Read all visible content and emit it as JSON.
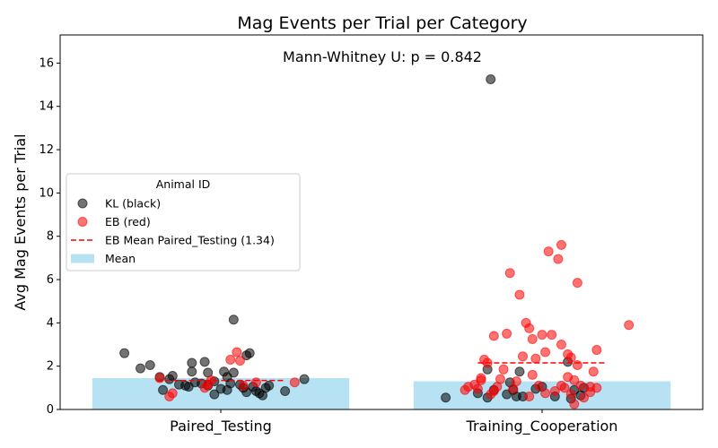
{
  "chart_data": {
    "type": "scatter",
    "title": "Mag Events per Trial per Category",
    "ylabel": "Avg Mag Events per Trial",
    "xlabel": "",
    "categories": [
      "Paired_Testing",
      "Training_Cooperation"
    ],
    "ylim": [
      0,
      17.3
    ],
    "yticks": [
      0,
      2,
      4,
      6,
      8,
      10,
      12,
      14,
      16
    ],
    "grid": false,
    "annotation": "Mann-Whitney U: p = 0.842",
    "means": [
      1.45,
      1.3
    ],
    "eb_mean_line": [
      {
        "category": "Paired_Testing",
        "value": 1.34
      },
      {
        "category": "Training_Cooperation",
        "value": 2.15
      }
    ],
    "legend": {
      "title": "Animal ID",
      "placement": "center-left",
      "entries": [
        {
          "label": "KL (black)",
          "kind": "marker",
          "color": "#000000"
        },
        {
          "label": "EB (red)",
          "kind": "marker",
          "color": "#ff0000"
        },
        {
          "label": "EB Mean Paired_Testing (1.34)",
          "kind": "dashed-line",
          "color": "#ff0000"
        },
        {
          "label": "Mean",
          "kind": "patch",
          "color": "#87ceeb"
        }
      ]
    },
    "series": [
      {
        "name": "KL (black)",
        "color": "#000000",
        "points": [
          {
            "x": -0.3,
            "y": 2.6
          },
          {
            "x": -0.25,
            "y": 1.9
          },
          {
            "x": -0.22,
            "y": 2.05
          },
          {
            "x": -0.19,
            "y": 1.5
          },
          {
            "x": -0.18,
            "y": 0.9
          },
          {
            "x": -0.16,
            "y": 1.4
          },
          {
            "x": -0.15,
            "y": 1.55
          },
          {
            "x": -0.13,
            "y": 1.15
          },
          {
            "x": -0.11,
            "y": 1.1
          },
          {
            "x": -0.1,
            "y": 1.05
          },
          {
            "x": -0.09,
            "y": 2.15
          },
          {
            "x": -0.09,
            "y": 1.75
          },
          {
            "x": -0.08,
            "y": 1.25
          },
          {
            "x": -0.06,
            "y": 1.2
          },
          {
            "x": -0.05,
            "y": 2.2
          },
          {
            "x": -0.04,
            "y": 1.1
          },
          {
            "x": -0.04,
            "y": 1.7
          },
          {
            "x": -0.02,
            "y": 1.3
          },
          {
            "x": -0.02,
            "y": 0.7
          },
          {
            "x": 0.0,
            "y": 0.95
          },
          {
            "x": 0.01,
            "y": 1.75
          },
          {
            "x": 0.02,
            "y": 1.5
          },
          {
            "x": 0.02,
            "y": 0.9
          },
          {
            "x": 0.03,
            "y": 1.2
          },
          {
            "x": 0.04,
            "y": 1.7
          },
          {
            "x": 0.04,
            "y": 4.15
          },
          {
            "x": 0.06,
            "y": 1.15
          },
          {
            "x": 0.07,
            "y": 1.0
          },
          {
            "x": 0.08,
            "y": 2.5
          },
          {
            "x": 0.08,
            "y": 0.8
          },
          {
            "x": 0.09,
            "y": 2.6
          },
          {
            "x": 0.1,
            "y": 1.05
          },
          {
            "x": 0.11,
            "y": 0.85
          },
          {
            "x": 0.12,
            "y": 0.75
          },
          {
            "x": 0.13,
            "y": 0.65
          },
          {
            "x": 0.14,
            "y": 1.0
          },
          {
            "x": 0.15,
            "y": 1.1
          },
          {
            "x": 0.2,
            "y": 0.85
          },
          {
            "x": 0.26,
            "y": 1.4
          },
          {
            "x": 0.7,
            "y": 0.55
          },
          {
            "x": 0.8,
            "y": 0.75
          },
          {
            "x": 0.83,
            "y": 1.85
          },
          {
            "x": 0.83,
            "y": 0.55
          },
          {
            "x": 0.84,
            "y": 15.25
          },
          {
            "x": 0.85,
            "y": 0.9
          },
          {
            "x": 0.89,
            "y": 0.7
          },
          {
            "x": 0.9,
            "y": 1.25
          },
          {
            "x": 0.91,
            "y": 0.9
          },
          {
            "x": 0.92,
            "y": 0.6
          },
          {
            "x": 0.93,
            "y": 1.75
          },
          {
            "x": 0.94,
            "y": 0.6
          },
          {
            "x": 0.98,
            "y": 0.95
          },
          {
            "x": 1.0,
            "y": 1.05
          },
          {
            "x": 1.04,
            "y": 0.6
          },
          {
            "x": 1.08,
            "y": 2.2
          },
          {
            "x": 1.09,
            "y": 0.5
          },
          {
            "x": 1.1,
            "y": 0.9
          },
          {
            "x": 1.12,
            "y": 0.65
          },
          {
            "x": 1.13,
            "y": 1.0
          }
        ]
      },
      {
        "name": "EB (red)",
        "color": "#ff0000",
        "points": [
          {
            "x": -0.19,
            "y": 1.45
          },
          {
            "x": -0.16,
            "y": 0.6
          },
          {
            "x": -0.15,
            "y": 0.75
          },
          {
            "x": -0.05,
            "y": 1.0
          },
          {
            "x": -0.04,
            "y": 1.15
          },
          {
            "x": -0.03,
            "y": 1.35
          },
          {
            "x": 0.03,
            "y": 2.3
          },
          {
            "x": 0.05,
            "y": 2.65
          },
          {
            "x": 0.06,
            "y": 2.25
          },
          {
            "x": 0.07,
            "y": 1.1
          },
          {
            "x": 0.11,
            "y": 1.25
          },
          {
            "x": 0.23,
            "y": 1.25
          },
          {
            "x": 0.76,
            "y": 0.9
          },
          {
            "x": 0.77,
            "y": 1.05
          },
          {
            "x": 0.79,
            "y": 1.15
          },
          {
            "x": 0.8,
            "y": 0.95
          },
          {
            "x": 0.81,
            "y": 1.35
          },
          {
            "x": 0.81,
            "y": 1.45
          },
          {
            "x": 0.82,
            "y": 2.3
          },
          {
            "x": 0.83,
            "y": 2.15
          },
          {
            "x": 0.84,
            "y": 0.7
          },
          {
            "x": 0.85,
            "y": 0.85
          },
          {
            "x": 0.85,
            "y": 3.4
          },
          {
            "x": 0.86,
            "y": 1.05
          },
          {
            "x": 0.87,
            "y": 1.4
          },
          {
            "x": 0.88,
            "y": 1.85
          },
          {
            "x": 0.89,
            "y": 3.5
          },
          {
            "x": 0.9,
            "y": 6.3
          },
          {
            "x": 0.91,
            "y": 0.95
          },
          {
            "x": 0.92,
            "y": 1.3
          },
          {
            "x": 0.93,
            "y": 5.3
          },
          {
            "x": 0.94,
            "y": 2.45
          },
          {
            "x": 0.95,
            "y": 4.0
          },
          {
            "x": 0.96,
            "y": 3.75
          },
          {
            "x": 0.96,
            "y": 0.6
          },
          {
            "x": 0.97,
            "y": 1.6
          },
          {
            "x": 0.97,
            "y": 3.25
          },
          {
            "x": 0.98,
            "y": 2.35
          },
          {
            "x": 0.99,
            "y": 1.1
          },
          {
            "x": 1.0,
            "y": 3.45
          },
          {
            "x": 1.01,
            "y": 0.75
          },
          {
            "x": 1.01,
            "y": 2.65
          },
          {
            "x": 1.02,
            "y": 7.3
          },
          {
            "x": 1.03,
            "y": 3.45
          },
          {
            "x": 1.04,
            "y": 0.85
          },
          {
            "x": 1.05,
            "y": 6.95
          },
          {
            "x": 1.06,
            "y": 1.1
          },
          {
            "x": 1.06,
            "y": 3.0
          },
          {
            "x": 1.06,
            "y": 7.6
          },
          {
            "x": 1.07,
            "y": 1.0
          },
          {
            "x": 1.08,
            "y": 1.5
          },
          {
            "x": 1.08,
            "y": 2.55
          },
          {
            "x": 1.09,
            "y": 0.7
          },
          {
            "x": 1.09,
            "y": 2.4
          },
          {
            "x": 1.1,
            "y": 1.35
          },
          {
            "x": 1.1,
            "y": 0.25
          },
          {
            "x": 1.11,
            "y": 2.05
          },
          {
            "x": 1.11,
            "y": 5.85
          },
          {
            "x": 1.12,
            "y": 1.1
          },
          {
            "x": 1.13,
            "y": 0.55
          },
          {
            "x": 1.15,
            "y": 1.05
          },
          {
            "x": 1.15,
            "y": 0.8
          },
          {
            "x": 1.16,
            "y": 1.75
          },
          {
            "x": 1.17,
            "y": 2.75
          },
          {
            "x": 1.17,
            "y": 1.0
          },
          {
            "x": 1.27,
            "y": 3.9
          }
        ]
      }
    ]
  }
}
